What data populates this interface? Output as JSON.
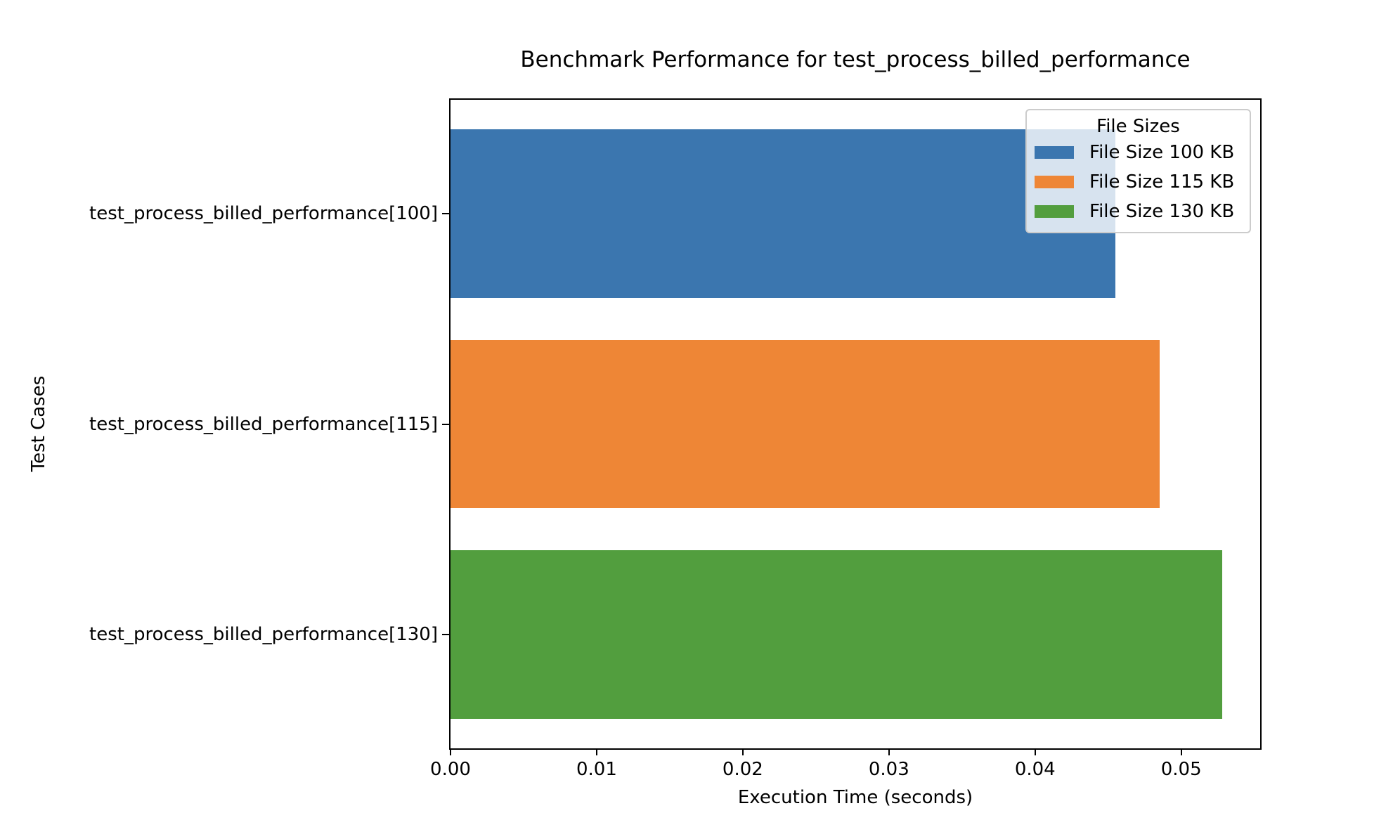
{
  "chart_data": {
    "type": "bar",
    "orientation": "horizontal",
    "title": "Benchmark Performance for test_process_billed_performance",
    "xlabel": "Execution Time (seconds)",
    "ylabel": "Test Cases",
    "categories": [
      "test_process_billed_performance[100]",
      "test_process_billed_performance[115]",
      "test_process_billed_performance[130]"
    ],
    "values": [
      0.0455,
      0.0485,
      0.0528
    ],
    "bar_colors": [
      "#3B76AF",
      "#EE8636",
      "#529E3E"
    ],
    "xlim": [
      0,
      0.0554
    ],
    "xtick_values": [
      0.0,
      0.01,
      0.02,
      0.03,
      0.04,
      0.05
    ],
    "xtick_labels": [
      "0.00",
      "0.01",
      "0.02",
      "0.03",
      "0.04",
      "0.05"
    ],
    "grid": false,
    "background_color": "#FFFFFF",
    "spine_color": "#000000",
    "legend": {
      "title": "File Sizes",
      "position": "upper right",
      "entries": [
        {
          "label": "File Size 100 KB",
          "color": "#3B76AF"
        },
        {
          "label": "File Size 115 KB",
          "color": "#EE8636"
        },
        {
          "label": "File Size 130 KB",
          "color": "#529E3E"
        }
      ]
    }
  }
}
